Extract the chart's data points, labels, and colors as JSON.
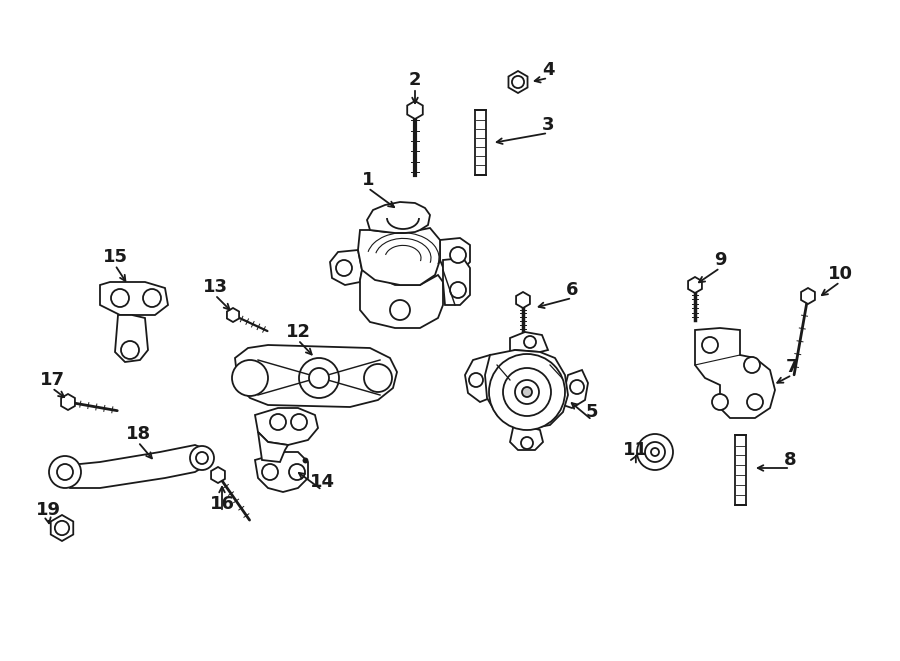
{
  "bg_color": "#ffffff",
  "line_color": "#1a1a1a",
  "fig_width": 9.0,
  "fig_height": 6.61,
  "dpi": 100,
  "label_fontsize": 13,
  "lw": 1.3
}
